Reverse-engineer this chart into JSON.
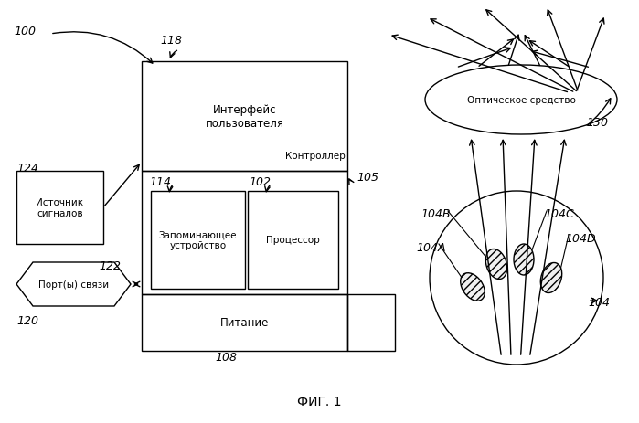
{
  "bg_color": "#ffffff",
  "fig_label": "ФИГ. 1",
  "user_iface_label": "Интерфейс\nпользователя",
  "memory_label": "Запоминающее\nустройство",
  "processor_label": "Процессор",
  "power_label": "Питание",
  "signal_source_label": "Источник\nсигналов",
  "comm_ports_label": "Порт(ы) связи",
  "controller_label": "Контроллер",
  "optical_label": "Оптическое средство",
  "label_100": "100",
  "label_118": "118",
  "label_105": "105",
  "label_108": "108",
  "label_124": "124",
  "label_122": "122",
  "label_120": "120",
  "label_114": "114",
  "label_102": "102",
  "label_130": "130",
  "label_104": "104",
  "label_104A": "104A",
  "label_104B": "104B",
  "label_104C": "104C",
  "label_104D": "104D"
}
